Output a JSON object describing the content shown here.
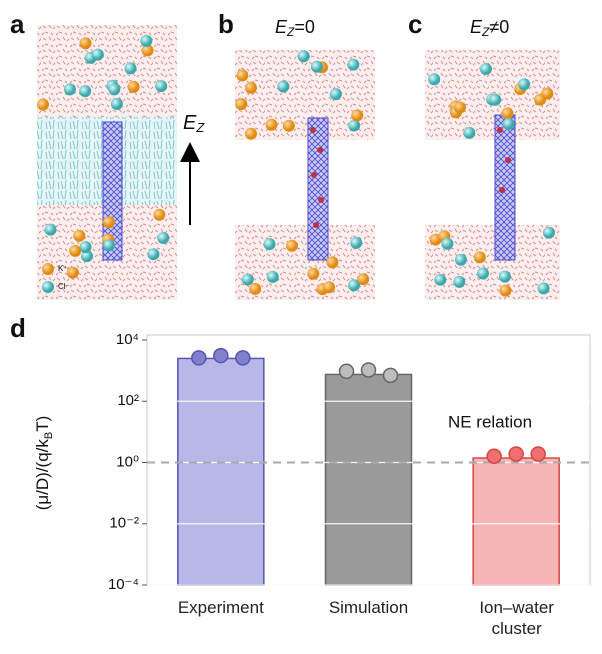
{
  "panels": [
    "a",
    "b",
    "c",
    "d"
  ],
  "field_a": [
    "E",
    "Z"
  ],
  "field_b": [
    "E",
    "Z",
    "=0"
  ],
  "field_c": [
    "E",
    "Z",
    "≠0"
  ],
  "legend": [
    "K⁺",
    "Cl⁻"
  ],
  "chart_data": {
    "type": "bar",
    "ylabel": [
      "(μ/D)/(q/k",
      "B",
      "T)"
    ],
    "annotation": "NE relation",
    "categories": [
      "Experiment",
      "Simulation",
      "Ion–water cluster"
    ],
    "values": [
      2500,
      750,
      1.4
    ],
    "points": [
      [
        2600,
        3100,
        2600
      ],
      [
        950,
        1050,
        700
      ],
      [
        1.6,
        1.9,
        1.9
      ]
    ],
    "colors": [
      "#b8b8e8",
      "#9a9a9a",
      "#f5b5b5"
    ],
    "edge_colors": [
      "#5555b8",
      "#666666",
      "#d94545"
    ],
    "point_colors": [
      "#8080cc",
      "#bdbdbd",
      "#f07070"
    ],
    "log_scale": true,
    "ylim": [
      0.0001,
      10000
    ],
    "yticks": [
      {
        "value": 0.0001,
        "label": "10⁻⁴"
      },
      {
        "value": 0.01,
        "label": "10⁻²"
      },
      {
        "value": 1,
        "label": "10⁰"
      },
      {
        "value": 100,
        "label": "10²"
      },
      {
        "value": 10000,
        "label": "10⁴"
      }
    ],
    "reference_line": 1,
    "grid": true
  }
}
